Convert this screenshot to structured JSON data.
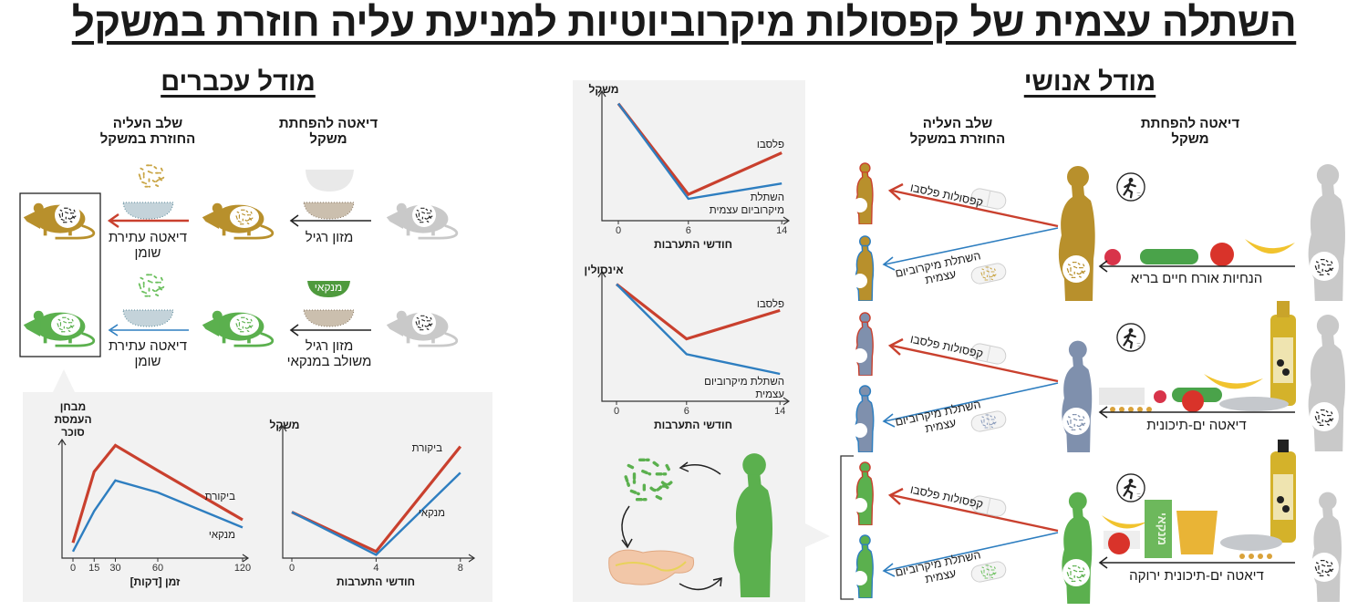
{
  "title": "השתלה עצמית של קפסולות מיקרוביוטיות למניעת עליה חוזרת במשקל",
  "mouse_model": {
    "heading": "מודל עכברים",
    "col_diet": "דיאטה להפחתת\nמשקל",
    "col_regain": "שלב העליה\nהחוזרת במשקל",
    "rows": [
      {
        "diet_label": "מזון רגיל",
        "regain_label": "דיאטה עתירת\nשומן"
      },
      {
        "diet_label": "מזון רגיל\nמשולב במנקאי",
        "regain_label": "דיאטה עתירת\nשומן",
        "bowl_label": "מנקאי"
      }
    ]
  },
  "human_model": {
    "heading": "מודל אנושי",
    "col_diet": "דיאטה להפחתת\nמשקל",
    "col_regain": "שלב העליה\nהחוזרת במשקל",
    "rows": [
      {
        "diet_label": "הנחיות אורח חיים בריא",
        "placebo_label": "קפסולות פלסבו",
        "amft_label": "השתלת מיקרוביום\nעצמית"
      },
      {
        "diet_label": "דיאטה ים-תיכונית",
        "placebo_label": "קפסולות פלסבו",
        "amft_label": "השתלת מיקרוביום\nעצמית"
      },
      {
        "diet_label": "דיאטה ים-תיכונית ירוקה",
        "placebo_label": "קפסולות פלסבו",
        "amft_label": "השתלת מיקרוביום\nעצמית",
        "cup_label": "מנקאי"
      }
    ]
  },
  "colors": {
    "red": "#c9402e",
    "blue": "#2e7ec0",
    "gold": "#b8902c",
    "slate": "#7f90ad",
    "green": "#5bb04e",
    "gray": "#c9c9c9"
  },
  "chart_data": [
    {
      "type": "line",
      "title": "",
      "ylabel": "מבחן\nהעמסת\nסוכר",
      "xlabel": "זמן [דקות]",
      "x": [
        0,
        15,
        30,
        60,
        120
      ],
      "xticks": [
        "0",
        "15",
        "30",
        "60",
        "120"
      ],
      "ylim": [
        0,
        110
      ],
      "series": [
        {
          "name": "ביקורת",
          "color": "#c9402e",
          "values": [
            14,
            79,
            103,
            80,
            35
          ]
        },
        {
          "name": "מנקאי",
          "color": "#2e7ec0",
          "values": [
            6,
            43,
            71,
            60,
            28
          ]
        }
      ]
    },
    {
      "type": "line",
      "title": "",
      "ylabel": "משקל",
      "xlabel": "חודשי התערבות",
      "x": [
        0,
        4,
        8
      ],
      "xticks": [
        "0",
        "4",
        "8"
      ],
      "ylim": [
        0,
        110
      ],
      "series": [
        {
          "name": "ביקורת",
          "color": "#c9402e",
          "values": [
            42,
            6,
            102
          ]
        },
        {
          "name": "מנקאי",
          "color": "#2e7ec0",
          "values": [
            42,
            3,
            78
          ]
        }
      ]
    },
    {
      "type": "line",
      "title": "",
      "ylabel": "משקל",
      "xlabel": "חודשי התערבות",
      "x": [
        0,
        6,
        14
      ],
      "xticks": [
        "0",
        "6",
        "14"
      ],
      "ylim": [
        0,
        115
      ],
      "series": [
        {
          "name": "פלסבו",
          "color": "#c9402e",
          "values": [
            107,
            24,
            62
          ]
        },
        {
          "name": "השתלת\nמיקרוביום עצמית",
          "color": "#2e7ec0",
          "values": [
            107,
            20,
            34
          ]
        }
      ]
    },
    {
      "type": "line",
      "title": "",
      "ylabel": "אינסולין",
      "xlabel": "חודשי התערבות",
      "x": [
        0,
        6,
        14
      ],
      "xticks": [
        "0",
        "6",
        "14"
      ],
      "ylim": [
        0,
        115
      ],
      "series": [
        {
          "name": "פלסבו",
          "color": "#c9402e",
          "values": [
            107,
            57,
            83
          ]
        },
        {
          "name": "השתלת מיקרוביום\nעצמית",
          "color": "#2e7ec0",
          "values": [
            107,
            43,
            25
          ]
        }
      ]
    }
  ]
}
